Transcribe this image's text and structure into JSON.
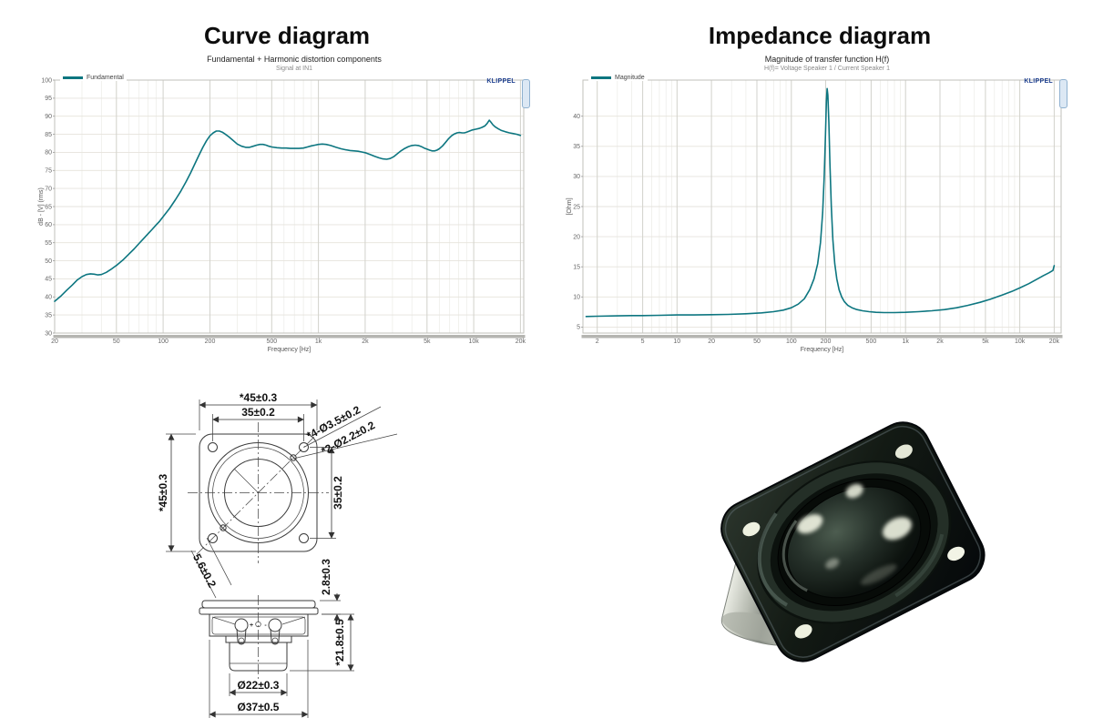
{
  "sections": {
    "curve_heading": "Curve diagram",
    "impedance_heading": "Impedance diagram"
  },
  "chart_data": [
    {
      "type": "line",
      "title": "Fundamental + Harmonic distortion components",
      "subtitle": "Signal at IN1",
      "watermark": "KLIPPEL",
      "xlabel": "Frequency [Hz]",
      "ylabel": "dB - [V] (rms)",
      "xscale": "log",
      "xlim": [
        20,
        21000
      ],
      "ylim": [
        30,
        100
      ],
      "yticks": [
        30,
        35,
        40,
        45,
        50,
        55,
        60,
        65,
        70,
        75,
        80,
        85,
        90,
        95,
        100
      ],
      "xticks": [
        [
          20,
          "20"
        ],
        [
          50,
          "50"
        ],
        [
          100,
          "100"
        ],
        [
          200,
          "200"
        ],
        [
          500,
          "500"
        ],
        [
          1000,
          "1k"
        ],
        [
          2000,
          "2k"
        ],
        [
          5000,
          "5k"
        ],
        [
          10000,
          "10k"
        ],
        [
          20000,
          "20k"
        ]
      ],
      "grid": true,
      "legend_position": "top-left",
      "legend": [
        {
          "label": "Fundamental",
          "color": "#0d7680"
        }
      ],
      "series": [
        {
          "name": "Fundamental",
          "color": "#0d7680",
          "points": [
            [
              20,
              38.8
            ],
            [
              22,
              40.3
            ],
            [
              24,
              41.9
            ],
            [
              26,
              43.3
            ],
            [
              28,
              44.7
            ],
            [
              30,
              45.6
            ],
            [
              32,
              46.2
            ],
            [
              34,
              46.4
            ],
            [
              36,
              46.3
            ],
            [
              38,
              46.1
            ],
            [
              40,
              46.2
            ],
            [
              43,
              46.8
            ],
            [
              46,
              47.6
            ],
            [
              50,
              48.7
            ],
            [
              55,
              50.2
            ],
            [
              60,
              51.8
            ],
            [
              65,
              53.3
            ],
            [
              70,
              54.8
            ],
            [
              75,
              56.2
            ],
            [
              80,
              57.5
            ],
            [
              85,
              58.7
            ],
            [
              90,
              59.9
            ],
            [
              95,
              61
            ],
            [
              100,
              62.2
            ],
            [
              110,
              64.5
            ],
            [
              120,
              66.9
            ],
            [
              130,
              69.3
            ],
            [
              140,
              71.8
            ],
            [
              150,
              74.3
            ],
            [
              160,
              76.8
            ],
            [
              170,
              79.2
            ],
            [
              180,
              81.4
            ],
            [
              190,
              83.2
            ],
            [
              200,
              84.6
            ],
            [
              210,
              85.4
            ],
            [
              220,
              85.9
            ],
            [
              230,
              85.9
            ],
            [
              240,
              85.6
            ],
            [
              250,
              85.1
            ],
            [
              265,
              84.3
            ],
            [
              280,
              83.4
            ],
            [
              300,
              82.3
            ],
            [
              320,
              81.7
            ],
            [
              340,
              81.4
            ],
            [
              360,
              81.4
            ],
            [
              380,
              81.7
            ],
            [
              400,
              82
            ],
            [
              420,
              82.2
            ],
            [
              440,
              82.2
            ],
            [
              460,
              82
            ],
            [
              480,
              81.7
            ],
            [
              500,
              81.5
            ],
            [
              540,
              81.3
            ],
            [
              580,
              81.2
            ],
            [
              620,
              81.2
            ],
            [
              660,
              81.1
            ],
            [
              700,
              81.1
            ],
            [
              750,
              81.1
            ],
            [
              800,
              81.2
            ],
            [
              850,
              81.5
            ],
            [
              900,
              81.8
            ],
            [
              950,
              82
            ],
            [
              1000,
              82.2
            ],
            [
              1060,
              82.3
            ],
            [
              1120,
              82.2
            ],
            [
              1200,
              81.9
            ],
            [
              1300,
              81.4
            ],
            [
              1400,
              81
            ],
            [
              1500,
              80.7
            ],
            [
              1600,
              80.5
            ],
            [
              1700,
              80.4
            ],
            [
              1800,
              80.3
            ],
            [
              1900,
              80.1
            ],
            [
              2000,
              79.9
            ],
            [
              2150,
              79.4
            ],
            [
              2300,
              78.9
            ],
            [
              2450,
              78.5
            ],
            [
              2600,
              78.2
            ],
            [
              2750,
              78.1
            ],
            [
              2900,
              78.3
            ],
            [
              3050,
              78.8
            ],
            [
              3200,
              79.5
            ],
            [
              3400,
              80.4
            ],
            [
              3600,
              81.1
            ],
            [
              3800,
              81.6
            ],
            [
              4000,
              81.9
            ],
            [
              4200,
              82
            ],
            [
              4400,
              81.9
            ],
            [
              4600,
              81.6
            ],
            [
              4800,
              81.2
            ],
            [
              5000,
              80.9
            ],
            [
              5200,
              80.6
            ],
            [
              5400,
              80.4
            ],
            [
              5600,
              80.4
            ],
            [
              5800,
              80.6
            ],
            [
              6000,
              81
            ],
            [
              6300,
              81.8
            ],
            [
              6600,
              82.8
            ],
            [
              6900,
              83.8
            ],
            [
              7200,
              84.6
            ],
            [
              7500,
              85.1
            ],
            [
              7800,
              85.4
            ],
            [
              8100,
              85.5
            ],
            [
              8400,
              85.4
            ],
            [
              8700,
              85.4
            ],
            [
              9000,
              85.6
            ],
            [
              9400,
              85.9
            ],
            [
              9800,
              86.2
            ],
            [
              10300,
              86.4
            ],
            [
              10800,
              86.6
            ],
            [
              11300,
              86.9
            ],
            [
              11800,
              87.3
            ],
            [
              12200,
              88
            ],
            [
              12600,
              88.9
            ],
            [
              12900,
              88.4
            ],
            [
              13300,
              87.6
            ],
            [
              13800,
              87
            ],
            [
              14400,
              86.5
            ],
            [
              15000,
              86.1
            ],
            [
              16000,
              85.7
            ],
            [
              17000,
              85.4
            ],
            [
              18000,
              85.2
            ],
            [
              19000,
              85
            ],
            [
              20000,
              84.7
            ]
          ]
        }
      ]
    },
    {
      "type": "line",
      "title": "Magnitude of transfer function H(f)",
      "subtitle": "H(f)= Voltage Speaker 1 / Current Speaker 1",
      "watermark": "KLIPPEL",
      "xlabel": "Frequency [Hz]",
      "ylabel": "[Ohm]",
      "xscale": "log",
      "xlim": [
        1.5,
        23000
      ],
      "ylim": [
        4,
        46
      ],
      "yticks": [
        5,
        10,
        15,
        20,
        25,
        30,
        35,
        40
      ],
      "xticks": [
        [
          2,
          "2"
        ],
        [
          5,
          "5"
        ],
        [
          10,
          "10"
        ],
        [
          20,
          "20"
        ],
        [
          50,
          "50"
        ],
        [
          100,
          "100"
        ],
        [
          200,
          "200"
        ],
        [
          500,
          "500"
        ],
        [
          1000,
          "1k"
        ],
        [
          2000,
          "2k"
        ],
        [
          5000,
          "5k"
        ],
        [
          10000,
          "10k"
        ],
        [
          20000,
          "20k"
        ]
      ],
      "grid": true,
      "legend_position": "top-left",
      "legend": [
        {
          "label": "Magnitude",
          "color": "#0d7680"
        }
      ],
      "series": [
        {
          "name": "Magnitude",
          "color": "#0d7680",
          "points": [
            [
              1.6,
              6.75
            ],
            [
              2,
              6.8
            ],
            [
              3,
              6.85
            ],
            [
              4,
              6.9
            ],
            [
              5,
              6.9
            ],
            [
              7,
              6.95
            ],
            [
              10,
              7
            ],
            [
              14,
              7
            ],
            [
              20,
              7.05
            ],
            [
              28,
              7.1
            ],
            [
              40,
              7.2
            ],
            [
              55,
              7.35
            ],
            [
              70,
              7.55
            ],
            [
              85,
              7.8
            ],
            [
              100,
              8.2
            ],
            [
              115,
              8.8
            ],
            [
              130,
              9.7
            ],
            [
              145,
              11.2
            ],
            [
              158,
              13
            ],
            [
              170,
              15.5
            ],
            [
              180,
              19
            ],
            [
              188,
              24
            ],
            [
              194,
              30
            ],
            [
              199,
              37
            ],
            [
              203,
              42.5
            ],
            [
              206,
              44.6
            ],
            [
              209,
              43.5
            ],
            [
              213,
              39
            ],
            [
              218,
              32
            ],
            [
              224,
              25
            ],
            [
              231,
              19.5
            ],
            [
              240,
              15.5
            ],
            [
              250,
              13
            ],
            [
              262,
              11.2
            ],
            [
              276,
              10
            ],
            [
              292,
              9.2
            ],
            [
              312,
              8.6
            ],
            [
              340,
              8.2
            ],
            [
              375,
              7.9
            ],
            [
              420,
              7.7
            ],
            [
              480,
              7.55
            ],
            [
              550,
              7.45
            ],
            [
              650,
              7.4
            ],
            [
              800,
              7.4
            ],
            [
              1000,
              7.45
            ],
            [
              1300,
              7.55
            ],
            [
              1700,
              7.7
            ],
            [
              2200,
              7.9
            ],
            [
              2800,
              8.2
            ],
            [
              3500,
              8.6
            ],
            [
              4500,
              9.1
            ],
            [
              5500,
              9.6
            ],
            [
              7000,
              10.3
            ],
            [
              8500,
              10.9
            ],
            [
              10000,
              11.5
            ],
            [
              12000,
              12.2
            ],
            [
              14000,
              12.9
            ],
            [
              16000,
              13.5
            ],
            [
              18000,
              14
            ],
            [
              19500,
              14.4
            ],
            [
              20000,
              15.2
            ]
          ]
        }
      ]
    }
  ],
  "drawing": {
    "dims": {
      "flange_width": "*45±0.3",
      "hole_pitch_h": "35±0.2",
      "corner_holes": "*4-Ø3.5±0.2",
      "small_holes": "*2-Ø2.2±0.2",
      "flange_height": "*45±0.3",
      "hole_pitch_v": "35±0.2",
      "small_hole_offset": "5.6±0.2",
      "gasket_thickness": "2.8±0.3",
      "total_depth": "*21.8±0.5",
      "magnet_dia": "Ø22±0.3",
      "basket_dia": "Ø37±0.5"
    },
    "terminals": {
      "plus": "+",
      "minus": "-"
    }
  }
}
